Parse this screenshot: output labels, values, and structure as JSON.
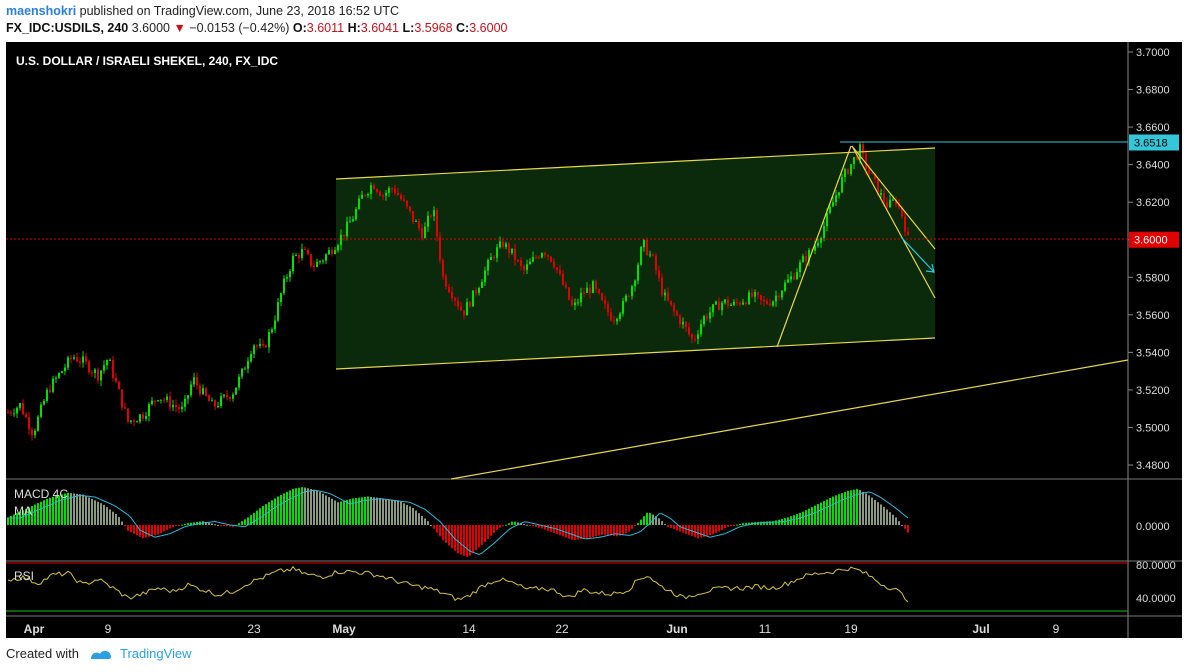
{
  "header": {
    "author": "maenshokri",
    "published": "published on TradingView.com, June 23, 2018 16:52 UTC",
    "symbol": "FX_IDC:USDILS, 240",
    "last": "3.6000",
    "change": "−0.0153 (−0.42%)",
    "open_label": "O:",
    "open": "3.6011",
    "high_label": "H:",
    "high": "3.6041",
    "low_label": "L:",
    "low": "3.5968",
    "close_label": "C:",
    "close": "3.6000"
  },
  "footer": {
    "created_with": "Created with",
    "brand": "TradingView"
  },
  "colors": {
    "bull": "#00e000",
    "bear": "#e00000",
    "channel": "#e6d84a",
    "cyan": "#33c7d9",
    "macd_line": "#31b8d8",
    "rsi": "#d6c24a"
  },
  "chart_data": {
    "type": "candlestick",
    "title": "U.S. DOLLAR / ISRAELI SHEKEL, 240, FX_IDC",
    "ylim": [
      3.472,
      3.706
    ],
    "y_ticks": [
      "3.7000",
      "3.6800",
      "3.6600",
      "3.6400",
      "3.6200",
      "3.6000",
      "3.5800",
      "3.5600",
      "3.5400",
      "3.5200",
      "3.5000",
      "3.4800"
    ],
    "x_ticks": [
      "Apr",
      "9",
      "May",
      "14",
      "22",
      "Jun",
      "11",
      "19",
      "Jul",
      "9"
    ],
    "x_ticks_extra": [
      "23"
    ],
    "price_labels": [
      {
        "value": "3.6518",
        "color": "#33c7d9",
        "level": 3.6518
      },
      {
        "value": "3.6000",
        "color": "#e00000",
        "level": 3.6
      }
    ],
    "close_path": [
      [
        0,
        3.508
      ],
      [
        12,
        3.512
      ],
      [
        25,
        3.497
      ],
      [
        40,
        3.52
      ],
      [
        55,
        3.531
      ],
      [
        65,
        3.538
      ],
      [
        75,
        3.535
      ],
      [
        90,
        3.528
      ],
      [
        100,
        3.537
      ],
      [
        110,
        3.52
      ],
      [
        120,
        3.503
      ],
      [
        135,
        3.507
      ],
      [
        150,
        3.517
      ],
      [
        165,
        3.512
      ],
      [
        175,
        3.509
      ],
      [
        185,
        3.526
      ],
      [
        195,
        3.518
      ],
      [
        205,
        3.511
      ],
      [
        215,
        3.515
      ],
      [
        225,
        3.519
      ],
      [
        235,
        3.53
      ],
      [
        245,
        3.545
      ],
      [
        255,
        3.541
      ],
      [
        265,
        3.555
      ],
      [
        275,
        3.575
      ],
      [
        285,
        3.59
      ],
      [
        295,
        3.594
      ],
      [
        305,
        3.586
      ],
      [
        315,
        3.59
      ],
      [
        325,
        3.596
      ],
      [
        335,
        3.603
      ],
      [
        345,
        3.612
      ],
      [
        355,
        3.624
      ],
      [
        365,
        3.63
      ],
      [
        375,
        3.624
      ],
      [
        385,
        3.628
      ],
      [
        395,
        3.62
      ],
      [
        405,
        3.611
      ],
      [
        415,
        3.603
      ],
      [
        425,
        3.617
      ],
      [
        435,
        3.58
      ],
      [
        445,
        3.571
      ],
      [
        455,
        3.561
      ],
      [
        465,
        3.57
      ],
      [
        475,
        3.581
      ],
      [
        485,
        3.592
      ],
      [
        495,
        3.598
      ],
      [
        505,
        3.592
      ],
      [
        515,
        3.583
      ],
      [
        525,
        3.589
      ],
      [
        535,
        3.595
      ],
      [
        545,
        3.589
      ],
      [
        555,
        3.576
      ],
      [
        565,
        3.563
      ],
      [
        575,
        3.572
      ],
      [
        585,
        3.575
      ],
      [
        595,
        3.565
      ],
      [
        605,
        3.558
      ],
      [
        615,
        3.565
      ],
      [
        625,
        3.577
      ],
      [
        635,
        3.598
      ],
      [
        645,
        3.589
      ],
      [
        655,
        3.571
      ],
      [
        665,
        3.562
      ],
      [
        675,
        3.555
      ],
      [
        685,
        3.546
      ],
      [
        695,
        3.558
      ],
      [
        705,
        3.563
      ],
      [
        715,
        3.567
      ],
      [
        725,
        3.565
      ],
      [
        735,
        3.568
      ],
      [
        745,
        3.57
      ],
      [
        755,
        3.566
      ],
      [
        765,
        3.568
      ],
      [
        775,
        3.575
      ],
      [
        785,
        3.581
      ],
      [
        795,
        3.589
      ],
      [
        805,
        3.595
      ],
      [
        815,
        3.606
      ],
      [
        825,
        3.62
      ],
      [
        835,
        3.633
      ],
      [
        845,
        3.642
      ],
      [
        852,
        3.648
      ],
      [
        858,
        3.639
      ],
      [
        865,
        3.632
      ],
      [
        872,
        3.624
      ],
      [
        880,
        3.618
      ],
      [
        888,
        3.621
      ],
      [
        895,
        3.612
      ],
      [
        900,
        3.6
      ]
    ],
    "macd_path": [
      [
        0,
        0.2
      ],
      [
        20,
        0.45
      ],
      [
        40,
        0.7
      ],
      [
        60,
        0.85
      ],
      [
        75,
        0.8
      ],
      [
        95,
        0.55
      ],
      [
        110,
        0.25
      ],
      [
        120,
        -0.15
      ],
      [
        135,
        -0.35
      ],
      [
        150,
        -0.25
      ],
      [
        165,
        -0.05
      ],
      [
        180,
        0.05
      ],
      [
        195,
        0.1
      ],
      [
        210,
        0.0
      ],
      [
        225,
        -0.05
      ],
      [
        240,
        0.2
      ],
      [
        255,
        0.5
      ],
      [
        270,
        0.75
      ],
      [
        285,
        0.95
      ],
      [
        295,
        1.0
      ],
      [
        310,
        0.9
      ],
      [
        330,
        0.6
      ],
      [
        345,
        0.7
      ],
      [
        360,
        0.75
      ],
      [
        375,
        0.7
      ],
      [
        390,
        0.65
      ],
      [
        405,
        0.45
      ],
      [
        420,
        0.1
      ],
      [
        435,
        -0.4
      ],
      [
        450,
        -0.75
      ],
      [
        460,
        -0.85
      ],
      [
        475,
        -0.5
      ],
      [
        490,
        -0.1
      ],
      [
        505,
        0.1
      ],
      [
        520,
        0.0
      ],
      [
        535,
        -0.1
      ],
      [
        550,
        -0.25
      ],
      [
        565,
        -0.4
      ],
      [
        580,
        -0.35
      ],
      [
        595,
        -0.25
      ],
      [
        610,
        -0.3
      ],
      [
        620,
        -0.2
      ],
      [
        630,
        0.05
      ],
      [
        640,
        0.35
      ],
      [
        650,
        0.2
      ],
      [
        660,
        -0.05
      ],
      [
        675,
        -0.2
      ],
      [
        690,
        -0.35
      ],
      [
        705,
        -0.25
      ],
      [
        720,
        -0.05
      ],
      [
        735,
        0.05
      ],
      [
        750,
        0.08
      ],
      [
        765,
        0.1
      ],
      [
        780,
        0.2
      ],
      [
        795,
        0.35
      ],
      [
        810,
        0.55
      ],
      [
        825,
        0.75
      ],
      [
        840,
        0.9
      ],
      [
        850,
        0.95
      ],
      [
        860,
        0.8
      ],
      [
        875,
        0.5
      ],
      [
        888,
        0.2
      ],
      [
        900,
        -0.2
      ]
    ],
    "rsi_path": [
      [
        0,
        62
      ],
      [
        15,
        65
      ],
      [
        30,
        58
      ],
      [
        45,
        68
      ],
      [
        60,
        70
      ],
      [
        75,
        56
      ],
      [
        90,
        63
      ],
      [
        105,
        52
      ],
      [
        120,
        40
      ],
      [
        135,
        45
      ],
      [
        150,
        52
      ],
      [
        165,
        48
      ],
      [
        180,
        56
      ],
      [
        195,
        50
      ],
      [
        210,
        44
      ],
      [
        225,
        48
      ],
      [
        240,
        58
      ],
      [
        255,
        65
      ],
      [
        270,
        72
      ],
      [
        285,
        75
      ],
      [
        300,
        68
      ],
      [
        315,
        66
      ],
      [
        330,
        72
      ],
      [
        345,
        72
      ],
      [
        360,
        70
      ],
      [
        375,
        66
      ],
      [
        390,
        60
      ],
      [
        405,
        55
      ],
      [
        420,
        52
      ],
      [
        435,
        46
      ],
      [
        450,
        38
      ],
      [
        460,
        42
      ],
      [
        475,
        55
      ],
      [
        490,
        63
      ],
      [
        505,
        58
      ],
      [
        520,
        50
      ],
      [
        535,
        52
      ],
      [
        550,
        48
      ],
      [
        560,
        40
      ],
      [
        575,
        50
      ],
      [
        590,
        46
      ],
      [
        605,
        45
      ],
      [
        620,
        50
      ],
      [
        630,
        62
      ],
      [
        640,
        68
      ],
      [
        650,
        56
      ],
      [
        660,
        50
      ],
      [
        675,
        40
      ],
      [
        690,
        46
      ],
      [
        705,
        50
      ],
      [
        720,
        52
      ],
      [
        735,
        52
      ],
      [
        750,
        54
      ],
      [
        765,
        52
      ],
      [
        780,
        58
      ],
      [
        795,
        66
      ],
      [
        810,
        70
      ],
      [
        825,
        72
      ],
      [
        840,
        76
      ],
      [
        850,
        74
      ],
      [
        860,
        68
      ],
      [
        875,
        56
      ],
      [
        888,
        50
      ],
      [
        900,
        38
      ]
    ],
    "rsi_levels": [
      "80.0000",
      "40.0000"
    ],
    "macd_zero": "0.0000",
    "panel_labels": {
      "macd": "MACD 4C",
      "ma": "MA",
      "rsi": "RSI"
    }
  }
}
